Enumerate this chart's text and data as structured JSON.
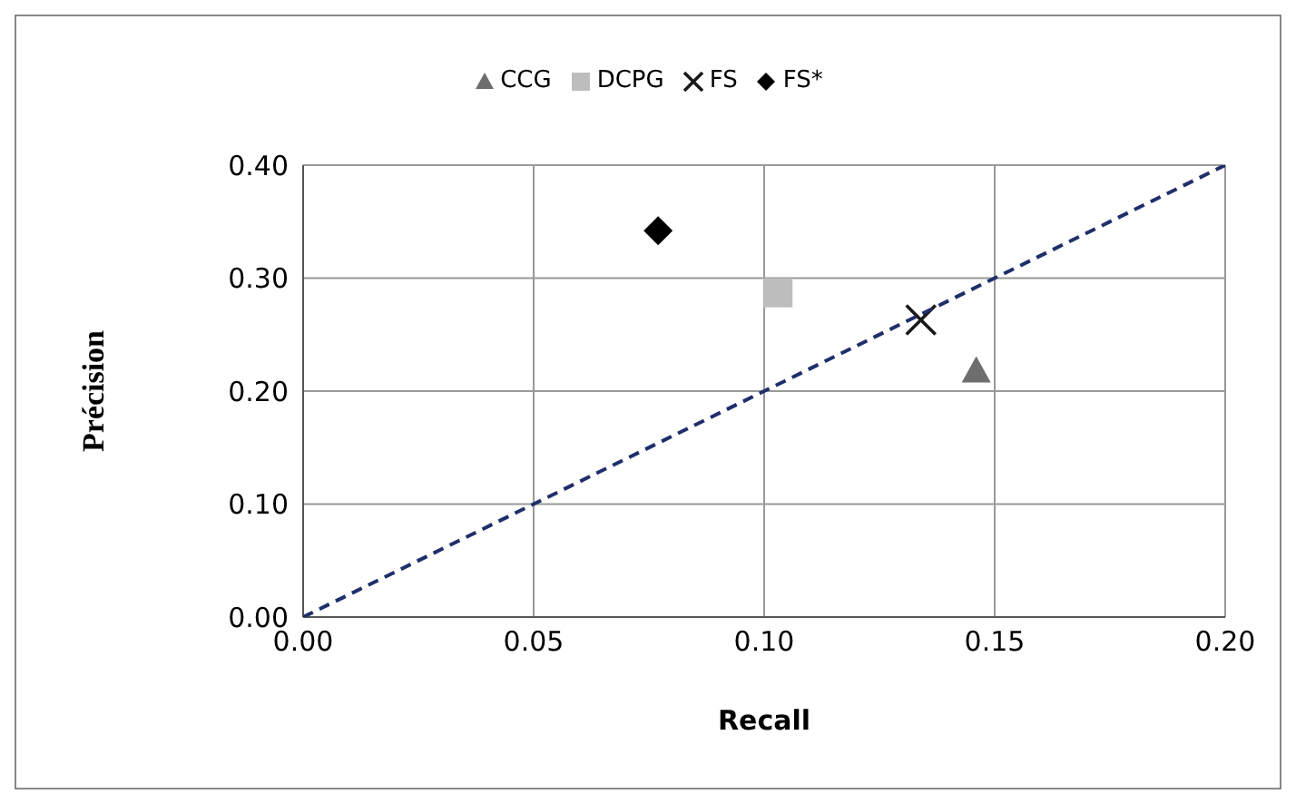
{
  "chart_data": {
    "type": "scatter",
    "xlabel": "Recall",
    "ylabel": "Précision",
    "xlim": [
      0,
      0.2
    ],
    "ylim": [
      0,
      0.4
    ],
    "xticks": [
      {
        "value": 0,
        "label": "0.00"
      },
      {
        "value": 0.05,
        "label": "0.05"
      },
      {
        "value": 0.1,
        "label": "0.10"
      },
      {
        "value": 0.15,
        "label": "0.15"
      },
      {
        "value": 0.2,
        "label": "0.20"
      }
    ],
    "yticks": [
      {
        "value": 0,
        "label": "0.00"
      },
      {
        "value": 0.1,
        "label": "0.10"
      },
      {
        "value": 0.2,
        "label": "0.20"
      },
      {
        "value": 0.3,
        "label": "0.30"
      },
      {
        "value": 0.4,
        "label": "0.40"
      }
    ],
    "grid": true,
    "legend": "top",
    "series": [
      {
        "name": "CCG",
        "color": "#6e6e6e",
        "marker": "triangle",
        "x": [
          0.146
        ],
        "values": [
          0.218
        ]
      },
      {
        "name": "DCPG",
        "color": "#bdbdbd",
        "marker": "square",
        "x": [
          0.103
        ],
        "values": [
          0.287
        ]
      },
      {
        "name": "FS",
        "color": "#1a1a1a",
        "marker": "cross",
        "x": [
          0.134
        ],
        "values": [
          0.263
        ]
      },
      {
        "name": "FS*",
        "color": "#000000",
        "marker": "diamond",
        "x": [
          0.077
        ],
        "values": [
          0.342
        ]
      },
      {
        "type": "line",
        "color": "#1f2f6b",
        "line_style": "dashed",
        "marker": "none",
        "x": [
          0,
          0.2
        ],
        "values": [
          0,
          0.4
        ]
      }
    ]
  }
}
